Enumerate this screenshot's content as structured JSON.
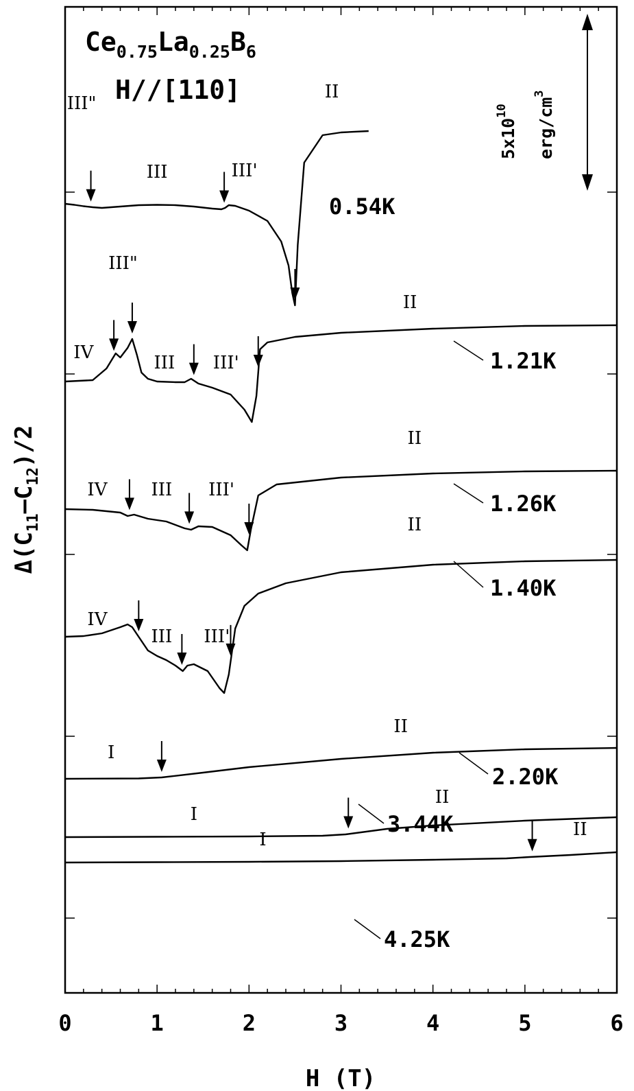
{
  "chart_data": {
    "type": "line",
    "title_parts": {
      "el1": "Ce",
      "sub1": "0.75",
      "el2": "La",
      "sub2": "0.25",
      "el3": "B",
      "sub3": "6"
    },
    "subtitle": "H//[110]",
    "xlabel": "H (T)",
    "ylabel_parts": {
      "pre": "Δ(C",
      "s1": "11",
      "mid": "–C",
      "s2": "12",
      "post": ")/2"
    },
    "x_ticks": [
      "0",
      "1",
      "2",
      "3",
      "4",
      "5",
      "6"
    ],
    "xlim": [
      0,
      6
    ],
    "scale_bar": {
      "mantissa": "5x10",
      "exponent": "10",
      "unit": "erg/cm",
      "unit_exponent": "3"
    },
    "series": [
      {
        "name": "0.54K",
        "offset": 255,
        "x": [
          0.0,
          0.1,
          0.2,
          0.3,
          0.4,
          0.6,
          0.8,
          1.0,
          1.2,
          1.4,
          1.6,
          1.7,
          1.74,
          1.78,
          1.85,
          2.0,
          2.2,
          2.35,
          2.43,
          2.47,
          2.5,
          2.53,
          2.6,
          2.8,
          3.0,
          3.3
        ],
        "y": [
          0,
          -1.5,
          -3.5,
          -5,
          -6,
          -4,
          -2,
          -1.5,
          -2,
          -4,
          -7,
          -8,
          -6,
          -2,
          -3,
          -10,
          -25,
          -55,
          -90,
          -130,
          -148,
          -60,
          60,
          100,
          104,
          106
        ],
        "labels": [
          {
            "text": "III\"",
            "x": 0.18,
            "y": 138
          },
          {
            "text": "III",
            "x": 1.0,
            "y": 38
          },
          {
            "text": "III'",
            "x": 1.95,
            "y": 40
          },
          {
            "text": "II",
            "x": 2.9,
            "y": 155
          }
        ],
        "arrows": [
          0.28,
          1.73,
          2.5
        ]
      },
      {
        "name": "1.21K",
        "offset": 55,
        "x": [
          0.0,
          0.3,
          0.45,
          0.55,
          0.6,
          0.68,
          0.73,
          0.78,
          0.83,
          0.9,
          1.0,
          1.2,
          1.3,
          1.37,
          1.45,
          1.6,
          1.8,
          1.95,
          2.03,
          2.08,
          2.12,
          2.2,
          2.5,
          3.0,
          4.0,
          5.0,
          6.0
        ],
        "y": [
          1,
          3,
          20,
          42,
          36,
          50,
          63,
          40,
          14,
          5,
          1,
          0,
          0,
          5,
          -2,
          -8,
          -18,
          -40,
          -58,
          -20,
          48,
          58,
          66,
          72,
          78,
          82,
          83
        ],
        "labels": [
          {
            "text": "IV",
            "x": 0.2,
            "y": 35
          },
          {
            "text": "III\"",
            "x": 0.63,
            "y": 165
          },
          {
            "text": "III",
            "x": 1.08,
            "y": 20
          },
          {
            "text": "III'",
            "x": 1.75,
            "y": 20
          },
          {
            "text": "II",
            "x": 3.75,
            "y": 108
          }
        ],
        "arrows": [
          0.53,
          0.73,
          1.4,
          2.1
        ]
      },
      {
        "name": "1.26K",
        "offset": -130,
        "x": [
          0.0,
          0.3,
          0.6,
          0.68,
          0.75,
          0.9,
          1.1,
          1.3,
          1.37,
          1.45,
          1.6,
          1.8,
          1.92,
          1.98,
          2.02,
          2.1,
          2.3,
          3.0,
          4.0,
          5.0,
          6.0
        ],
        "y": [
          0,
          -1,
          -5,
          -10,
          -8,
          -14,
          -18,
          -28,
          -30,
          -25,
          -26,
          -38,
          -53,
          -60,
          -30,
          20,
          36,
          46,
          52,
          55,
          56
        ],
        "labels": [
          {
            "text": "IV",
            "x": 0.35,
            "y": 20
          },
          {
            "text": "III",
            "x": 1.05,
            "y": 20
          },
          {
            "text": "III'",
            "x": 1.7,
            "y": 20
          },
          {
            "text": "II",
            "x": 3.8,
            "y": 95
          }
        ],
        "arrows": [
          0.7,
          1.35,
          2.0
        ]
      },
      {
        "name": "1.40K",
        "offset": -325,
        "x": [
          0.0,
          0.2,
          0.4,
          0.6,
          0.68,
          0.73,
          0.8,
          0.9,
          1.0,
          1.1,
          1.2,
          1.28,
          1.33,
          1.4,
          1.55,
          1.68,
          1.73,
          1.78,
          1.85,
          1.95,
          2.1,
          2.4,
          3.0,
          4.0,
          5.0,
          6.0
        ],
        "y": [
          0,
          1,
          5,
          14,
          18,
          14,
          0,
          -20,
          -28,
          -34,
          -42,
          -50,
          -42,
          -40,
          -50,
          -75,
          -82,
          -55,
          12,
          45,
          63,
          78,
          94,
          105,
          110,
          112
        ],
        "labels": [
          {
            "text": "IV",
            "x": 0.35,
            "y": 17
          },
          {
            "text": "III",
            "x": 1.05,
            "y": -8
          },
          {
            "text": "III'",
            "x": 1.65,
            "y": -8
          },
          {
            "text": "II",
            "x": 3.8,
            "y": 155
          }
        ],
        "arrows": [
          0.8,
          1.27,
          1.8
        ]
      },
      {
        "name": "2.20K",
        "offset": -520,
        "x": [
          0.0,
          0.8,
          1.05,
          1.5,
          2.0,
          3.0,
          4.0,
          5.0,
          6.0
        ],
        "y": [
          0,
          0.5,
          2,
          9,
          17,
          29,
          38,
          43,
          45
        ],
        "labels": [
          {
            "text": "I",
            "x": 0.5,
            "y": 30
          },
          {
            "text": "II",
            "x": 3.65,
            "y": 68
          }
        ],
        "arrows": [
          1.05
        ]
      },
      {
        "name": "3.44K",
        "offset": -585,
        "x": [
          0.0,
          1.0,
          2.0,
          2.8,
          3.05,
          3.5,
          4.0,
          5.0,
          6.0
        ],
        "y": [
          0,
          0.5,
          1,
          2,
          4,
          12,
          17,
          24,
          29
        ],
        "labels": [
          {
            "text": "I",
            "x": 1.4,
            "y": 25
          },
          {
            "text": "II",
            "x": 4.1,
            "y": 50
          }
        ],
        "arrows": [
          3.08
        ]
      },
      {
        "name": "4.25K",
        "offset": -660,
        "x": [
          0.0,
          1.0,
          2.0,
          3.0,
          4.0,
          4.8,
          5.05,
          5.5,
          6.0
        ],
        "y": [
          0,
          0.5,
          1,
          2,
          4,
          6,
          8,
          11,
          15
        ],
        "labels": [
          {
            "text": "I",
            "x": 2.15,
            "y": 25
          },
          {
            "text": "II",
            "x": 5.6,
            "y": 40
          }
        ],
        "arrows": [
          5.08
        ]
      }
    ]
  }
}
